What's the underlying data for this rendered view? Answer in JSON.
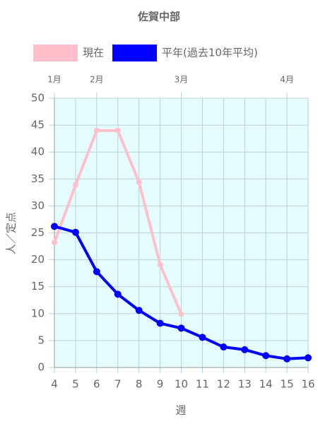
{
  "chart_data": {
    "type": "line",
    "title": "佐賀中部",
    "x": [
      4,
      5,
      6,
      7,
      8,
      9,
      10,
      11,
      12,
      13,
      14,
      15,
      16
    ],
    "series": [
      {
        "name": "現在",
        "color": "#ffc0cb",
        "values": [
          23.2,
          33.9,
          44,
          44,
          34.4,
          19.1,
          9.9,
          null,
          null,
          null,
          null,
          null,
          null
        ]
      },
      {
        "name": "平年(過去10年平均)",
        "color": "#0000ff",
        "values": [
          26.2,
          25.1,
          17.8,
          13.6,
          10.6,
          8.2,
          7.3,
          5.6,
          3.8,
          3.3,
          2.2,
          1.6,
          1.8
        ]
      }
    ],
    "xlim": [
      4,
      16
    ],
    "xticks": [
      4,
      5,
      6,
      7,
      8,
      9,
      10,
      11,
      12,
      13,
      14,
      15,
      16
    ],
    "x2ticks": [
      {
        "value": 4,
        "label": "1月"
      },
      {
        "value": 6,
        "label": "2月"
      },
      {
        "value": 10,
        "label": "3月"
      },
      {
        "value": 15,
        "label": "4月"
      }
    ],
    "ylim": [
      0,
      50
    ],
    "yticks": [
      0,
      5,
      10,
      15,
      20,
      25,
      30,
      35,
      40,
      45,
      50
    ],
    "xlabel": "週",
    "ylabel": "人／定点",
    "grid": true,
    "legend": "top",
    "background": "#e6fdff"
  }
}
